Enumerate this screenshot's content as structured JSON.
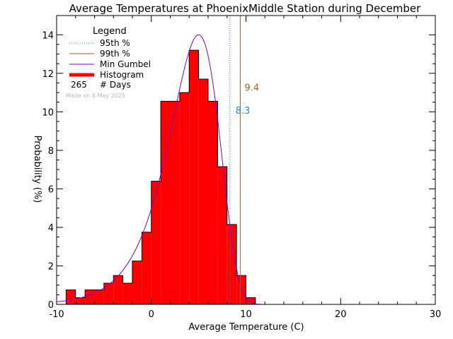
{
  "chart_data": {
    "type": "bar",
    "title": "Average Temperatures at PhoenixMiddle Station during December",
    "xlabel": "Average Temperature (C)",
    "ylabel_top": "Probability",
    "ylabel_bottom": "(%)",
    "xlim": [
      -10,
      30
    ],
    "ylim": [
      0,
      15
    ],
    "x_ticks": [
      -10,
      0,
      10,
      20,
      30
    ],
    "y_ticks": [
      0,
      2,
      4,
      6,
      8,
      10,
      12,
      14
    ],
    "bin_width": 1,
    "histogram": {
      "name": "Histogram",
      "bin_starts": [
        -9,
        -8,
        -7,
        -6,
        -5,
        -4,
        -3,
        -2,
        -1,
        0,
        1,
        2,
        3,
        4,
        5,
        6,
        7,
        8,
        9,
        10
      ],
      "values": [
        0.75,
        0.35,
        0.75,
        0.75,
        1.1,
        1.5,
        1.1,
        2.25,
        3.75,
        6.4,
        10.55,
        10.55,
        11.0,
        13.2,
        11.7,
        10.55,
        7.15,
        4.15,
        1.5,
        0.35
      ],
      "color": "#ff0000"
    },
    "gumbel_curve": {
      "name": "Min Gumbel",
      "mode": 5.0,
      "scale": 2.65,
      "color": "#7b00d0"
    },
    "percentile_95": {
      "name": "95th %",
      "value": 8.3,
      "label": "8.3",
      "color": "#1e90c8"
    },
    "percentile_99": {
      "name": "99th %",
      "value": 9.4,
      "label": "9.4",
      "color": "#a0622d"
    },
    "legend": {
      "title": "Legend",
      "items": [
        {
          "label": "95th  %",
          "style": "dotted",
          "color": "#1e90c8"
        },
        {
          "label": "99th  %",
          "style": "solid",
          "color": "#a0622d"
        },
        {
          "label": "Min Gumbel",
          "style": "solid",
          "color": "#7b00d0"
        },
        {
          "label": "Histogram",
          "style": "thick",
          "color": "#ff0000"
        }
      ],
      "days_count": "265",
      "days_label": "# Days",
      "made_on": "Made on 8 May 2025"
    }
  }
}
